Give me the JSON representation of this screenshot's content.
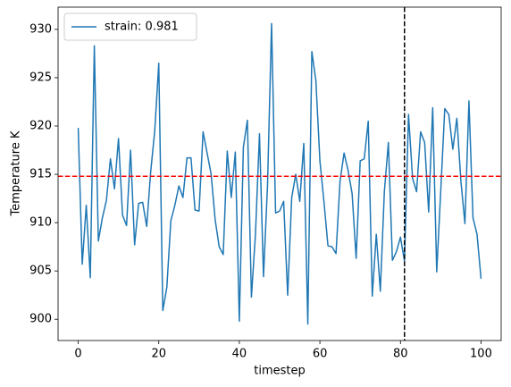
{
  "chart_data": {
    "type": "line",
    "xlabel": "timestep",
    "ylabel": "Temperature K",
    "x": [
      0,
      1,
      2,
      3,
      4,
      5,
      6,
      7,
      8,
      9,
      10,
      11,
      12,
      13,
      14,
      15,
      16,
      17,
      18,
      19,
      20,
      21,
      22,
      23,
      24,
      25,
      26,
      27,
      28,
      29,
      30,
      31,
      32,
      33,
      34,
      35,
      36,
      37,
      38,
      39,
      40,
      41,
      42,
      43,
      44,
      45,
      46,
      47,
      48,
      49,
      50,
      51,
      52,
      53,
      54,
      55,
      56,
      57,
      58,
      59,
      60,
      61,
      62,
      63,
      64,
      65,
      66,
      67,
      68,
      69,
      70,
      71,
      72,
      73,
      74,
      75,
      76,
      77,
      78,
      79,
      80,
      81,
      82,
      83,
      84,
      85,
      86,
      87,
      88,
      89,
      90,
      91,
      92,
      93,
      94,
      95,
      96,
      97,
      98,
      99,
      100
    ],
    "series": [
      {
        "name": "strain: 0.981",
        "color": "#1f77b4",
        "values": [
          919.8,
          905.7,
          911.8,
          904.3,
          928.3,
          908.1,
          910.5,
          912.3,
          916.6,
          913.5,
          918.7,
          910.8,
          909.7,
          917.5,
          907.7,
          912.0,
          912.1,
          909.6,
          915.3,
          919.5,
          926.5,
          900.9,
          903.3,
          910.2,
          911.8,
          913.8,
          912.6,
          916.7,
          916.7,
          911.3,
          911.2,
          919.4,
          917.2,
          915.0,
          910.3,
          907.5,
          906.7,
          917.4,
          912.6,
          917.3,
          899.8,
          917.8,
          920.6,
          902.3,
          908.8,
          919.2,
          904.4,
          913.9,
          930.6,
          911.0,
          911.2,
          912.2,
          902.5,
          912.6,
          915.0,
          912.2,
          918.2,
          899.5,
          927.7,
          924.7,
          916.4,
          912.2,
          907.6,
          907.5,
          906.8,
          914.3,
          917.2,
          915.4,
          913.0,
          906.3,
          916.4,
          916.6,
          920.5,
          902.4,
          908.8,
          902.9,
          913.2,
          918.3,
          906.1,
          907.0,
          908.5,
          906.0,
          921.2,
          914.6,
          913.2,
          919.4,
          918.3,
          911.1,
          921.9,
          904.9,
          913.3,
          921.8,
          921.2,
          917.6,
          920.8,
          914.3,
          909.9,
          922.6,
          910.5,
          908.8,
          904.2
        ]
      }
    ],
    "hlines": [
      {
        "value": 914.8,
        "color": "#ff0000"
      }
    ],
    "vlines": [
      {
        "value": 81,
        "color": "#000000"
      }
    ],
    "xlim": [
      -5,
      105
    ],
    "ylim": [
      897.8,
      932.3
    ],
    "xticks": [
      0,
      20,
      40,
      60,
      80,
      100
    ],
    "yticks": [
      900,
      905,
      910,
      915,
      920,
      925,
      930
    ],
    "legend": "upper left"
  }
}
